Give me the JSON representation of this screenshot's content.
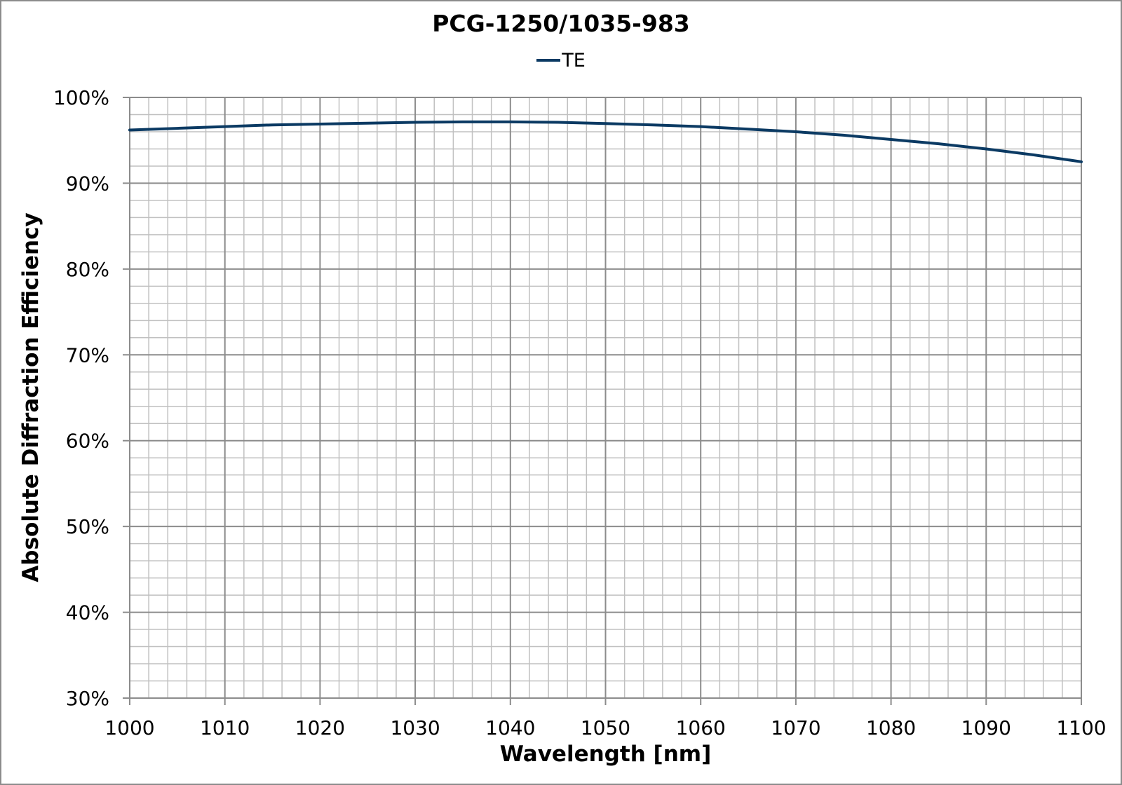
{
  "chart_data": {
    "type": "line",
    "title": "PCG-1250/1035-983",
    "xlabel": "Wavelength [nm]",
    "ylabel": "Absolute Diffraction Efficiency",
    "xlim": [
      1000,
      1100
    ],
    "ylim": [
      30,
      100
    ],
    "x_ticks": [
      1000,
      1010,
      1020,
      1030,
      1040,
      1050,
      1060,
      1070,
      1080,
      1090,
      1100
    ],
    "x_tick_labels": [
      "1000",
      "1010",
      "1020",
      "1030",
      "1040",
      "1050",
      "1060",
      "1070",
      "1080",
      "1090",
      "1100"
    ],
    "y_ticks": [
      30,
      40,
      50,
      60,
      70,
      80,
      90,
      100
    ],
    "y_tick_labels": [
      "30%",
      "40%",
      "50%",
      "60%",
      "70%",
      "80%",
      "90%",
      "100%"
    ],
    "grid": {
      "major": true,
      "minor": true,
      "x_minor_step": 2,
      "y_minor_step": 2
    },
    "legend_position": "top",
    "series": [
      {
        "name": "TE",
        "color": "#0b3a63",
        "x": [
          1000,
          1005,
          1010,
          1015,
          1020,
          1025,
          1030,
          1035,
          1040,
          1045,
          1050,
          1055,
          1060,
          1065,
          1070,
          1075,
          1080,
          1085,
          1090,
          1095,
          1100
        ],
        "values": [
          96.2,
          96.4,
          96.6,
          96.8,
          96.9,
          97.0,
          97.1,
          97.15,
          97.15,
          97.1,
          96.95,
          96.8,
          96.6,
          96.3,
          96.0,
          95.6,
          95.1,
          94.6,
          94.0,
          93.3,
          92.5
        ]
      }
    ]
  },
  "colors": {
    "minor_grid": "#c0c0c0",
    "major_grid": "#8c8c8c",
    "frame": "#8c8c8c"
  }
}
